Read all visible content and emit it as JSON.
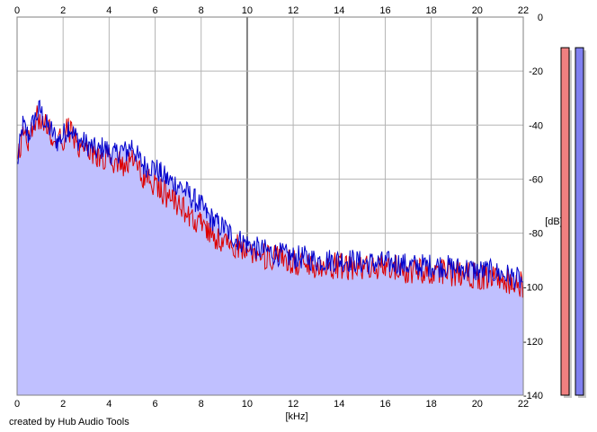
{
  "chart_data": {
    "type": "area",
    "title": "",
    "x_unit": "[kHz]",
    "y_unit": "[dB]",
    "xlim": [
      0,
      22
    ],
    "ylim": [
      -140,
      0
    ],
    "x_ticks": [
      0,
      2,
      4,
      6,
      8,
      10,
      12,
      14,
      16,
      18,
      20,
      22
    ],
    "y_ticks": [
      0,
      -20,
      -40,
      -60,
      -80,
      -100,
      -120,
      -140
    ],
    "grid": true,
    "series": [
      {
        "color": "#0000cc",
        "fill": "#c0c0ff",
        "x": [
          0,
          0.25,
          0.5,
          0.75,
          1,
          1.25,
          1.5,
          1.75,
          2,
          2.25,
          2.5,
          2.75,
          3,
          3.25,
          3.5,
          3.75,
          4,
          4.25,
          4.5,
          4.75,
          5,
          5.25,
          5.5,
          5.75,
          6,
          6.25,
          6.5,
          6.75,
          7,
          7.25,
          7.5,
          7.75,
          8,
          8.25,
          8.5,
          8.75,
          9,
          9.25,
          9.5,
          9.75,
          10,
          10.5,
          11,
          11.5,
          12,
          12.5,
          13,
          13.5,
          14,
          14.5,
          15,
          15.5,
          16,
          16.5,
          17,
          17.5,
          18,
          18.5,
          19,
          19.5,
          20,
          20.5,
          21,
          21.5,
          22
        ],
        "y": [
          -55,
          -40,
          -44,
          -38,
          -34,
          -40,
          -42,
          -46,
          -44,
          -40,
          -44,
          -46,
          -47,
          -48,
          -50,
          -48,
          -50,
          -51,
          -49,
          -50,
          -47,
          -52,
          -55,
          -55,
          -56,
          -58,
          -60,
          -61,
          -62,
          -64,
          -66,
          -68,
          -70,
          -73,
          -75,
          -77,
          -78,
          -80,
          -82,
          -83,
          -84,
          -86,
          -87,
          -88,
          -89,
          -89,
          -90,
          -90,
          -90,
          -90,
          -91,
          -91,
          -91,
          -91,
          -92,
          -92,
          -92,
          -92,
          -93,
          -93,
          -94,
          -94,
          -95,
          -96,
          -98
        ]
      },
      {
        "color": "#dd0000",
        "x": [
          0,
          0.25,
          0.5,
          0.75,
          1,
          1.25,
          1.5,
          1.75,
          2,
          2.25,
          2.5,
          2.75,
          3,
          3.25,
          3.5,
          3.75,
          4,
          4.25,
          4.5,
          4.75,
          5,
          5.25,
          5.5,
          5.75,
          6,
          6.25,
          6.5,
          6.75,
          7,
          7.25,
          7.5,
          7.75,
          8,
          8.25,
          8.5,
          8.75,
          9,
          9.25,
          9.5,
          9.75,
          10,
          10.5,
          11,
          11.5,
          12,
          12.5,
          13,
          13.5,
          14,
          14.5,
          15,
          15.5,
          16,
          16.5,
          17,
          17.5,
          18,
          18.5,
          19,
          19.5,
          20,
          20.5,
          21,
          21.5,
          22
        ],
        "y": [
          -56,
          -42,
          -45,
          -39,
          -36,
          -41,
          -43,
          -47,
          -45,
          -41,
          -45,
          -48,
          -50,
          -51,
          -53,
          -52,
          -53,
          -55,
          -54,
          -55,
          -53,
          -57,
          -60,
          -61,
          -62,
          -64,
          -66,
          -67,
          -69,
          -71,
          -73,
          -75,
          -77,
          -79,
          -80,
          -82,
          -83,
          -84,
          -85,
          -86,
          -86,
          -88,
          -89,
          -90,
          -91,
          -91,
          -92,
          -92,
          -92,
          -93,
          -93,
          -93,
          -93,
          -93,
          -94,
          -94,
          -94,
          -94,
          -95,
          -95,
          -96,
          -96,
          -97,
          -98,
          -99
        ]
      }
    ],
    "level_meters": [
      {
        "color": "#f08080",
        "value_db": -12
      },
      {
        "color": "#8080f0",
        "value_db": -12
      }
    ],
    "credit": "created by Hub Audio Tools"
  }
}
